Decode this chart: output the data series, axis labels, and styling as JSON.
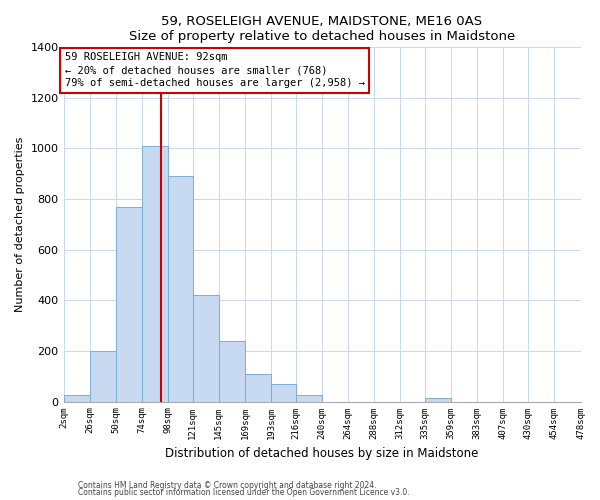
{
  "title": "59, ROSELEIGH AVENUE, MAIDSTONE, ME16 0AS",
  "subtitle": "Size of property relative to detached houses in Maidstone",
  "xlabel": "Distribution of detached houses by size in Maidstone",
  "ylabel": "Number of detached properties",
  "bar_edges": [
    2,
    26,
    50,
    74,
    98,
    121,
    145,
    169,
    193,
    216,
    240,
    264,
    288,
    312,
    335,
    359,
    383,
    407,
    430,
    454,
    478
  ],
  "bar_heights": [
    25,
    200,
    770,
    1010,
    890,
    420,
    240,
    110,
    70,
    25,
    0,
    0,
    0,
    0,
    15,
    0,
    0,
    0,
    0,
    0
  ],
  "bar_color": "#c6d9f0",
  "bar_edge_color": "#7bafd4",
  "vline_x": 92,
  "vline_color": "#cc0000",
  "annotation_line1": "59 ROSELEIGH AVENUE: 92sqm",
  "annotation_line2": "← 20% of detached houses are smaller (768)",
  "annotation_line3": "79% of semi-detached houses are larger (2,958) →",
  "annotation_box_color": "#ffffff",
  "annotation_box_edge": "#cc0000",
  "ylim": [
    0,
    1400
  ],
  "tick_labels": [
    "2sqm",
    "26sqm",
    "50sqm",
    "74sqm",
    "98sqm",
    "121sqm",
    "145sqm",
    "169sqm",
    "193sqm",
    "216sqm",
    "240sqm",
    "264sqm",
    "288sqm",
    "312sqm",
    "335sqm",
    "359sqm",
    "383sqm",
    "407sqm",
    "430sqm",
    "454sqm",
    "478sqm"
  ],
  "footer1": "Contains HM Land Registry data © Crown copyright and database right 2024.",
  "footer2": "Contains public sector information licensed under the Open Government Licence v3.0."
}
